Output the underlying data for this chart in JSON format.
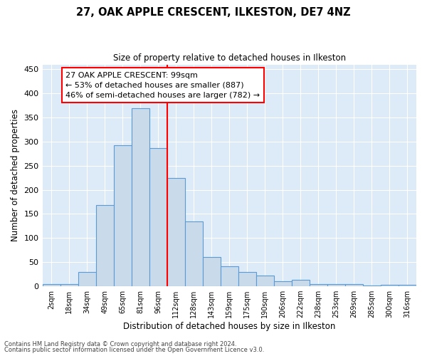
{
  "title": "27, OAK APPLE CRESCENT, ILKESTON, DE7 4NZ",
  "subtitle": "Size of property relative to detached houses in Ilkeston",
  "xlabel": "Distribution of detached houses by size in Ilkeston",
  "ylabel": "Number of detached properties",
  "bar_labels": [
    "2sqm",
    "18sqm",
    "34sqm",
    "49sqm",
    "65sqm",
    "81sqm",
    "96sqm",
    "112sqm",
    "128sqm",
    "143sqm",
    "159sqm",
    "175sqm",
    "190sqm",
    "206sqm",
    "222sqm",
    "238sqm",
    "253sqm",
    "269sqm",
    "285sqm",
    "300sqm",
    "316sqm"
  ],
  "bar_values": [
    4,
    4,
    30,
    168,
    293,
    370,
    287,
    225,
    135,
    60,
    42,
    30,
    23,
    11,
    13,
    5,
    4,
    4,
    1,
    3,
    3
  ],
  "bar_color": "#c9daea",
  "bar_edge_color": "#5b9bd5",
  "vline_x": 6.5,
  "vline_color": "red",
  "annotation_text": "27 OAK APPLE CRESCENT: 99sqm\n← 53% of detached houses are smaller (887)\n46% of semi-detached houses are larger (782) →",
  "annotation_box_color": "white",
  "annotation_box_edge": "red",
  "ylim": [
    0,
    460
  ],
  "yticks": [
    0,
    50,
    100,
    150,
    200,
    250,
    300,
    350,
    400,
    450
  ],
  "footer_line1": "Contains HM Land Registry data © Crown copyright and database right 2024.",
  "footer_line2": "Contains public sector information licensed under the Open Government Licence v3.0.",
  "bg_color": "#ddeaf7",
  "grid_color": "white"
}
